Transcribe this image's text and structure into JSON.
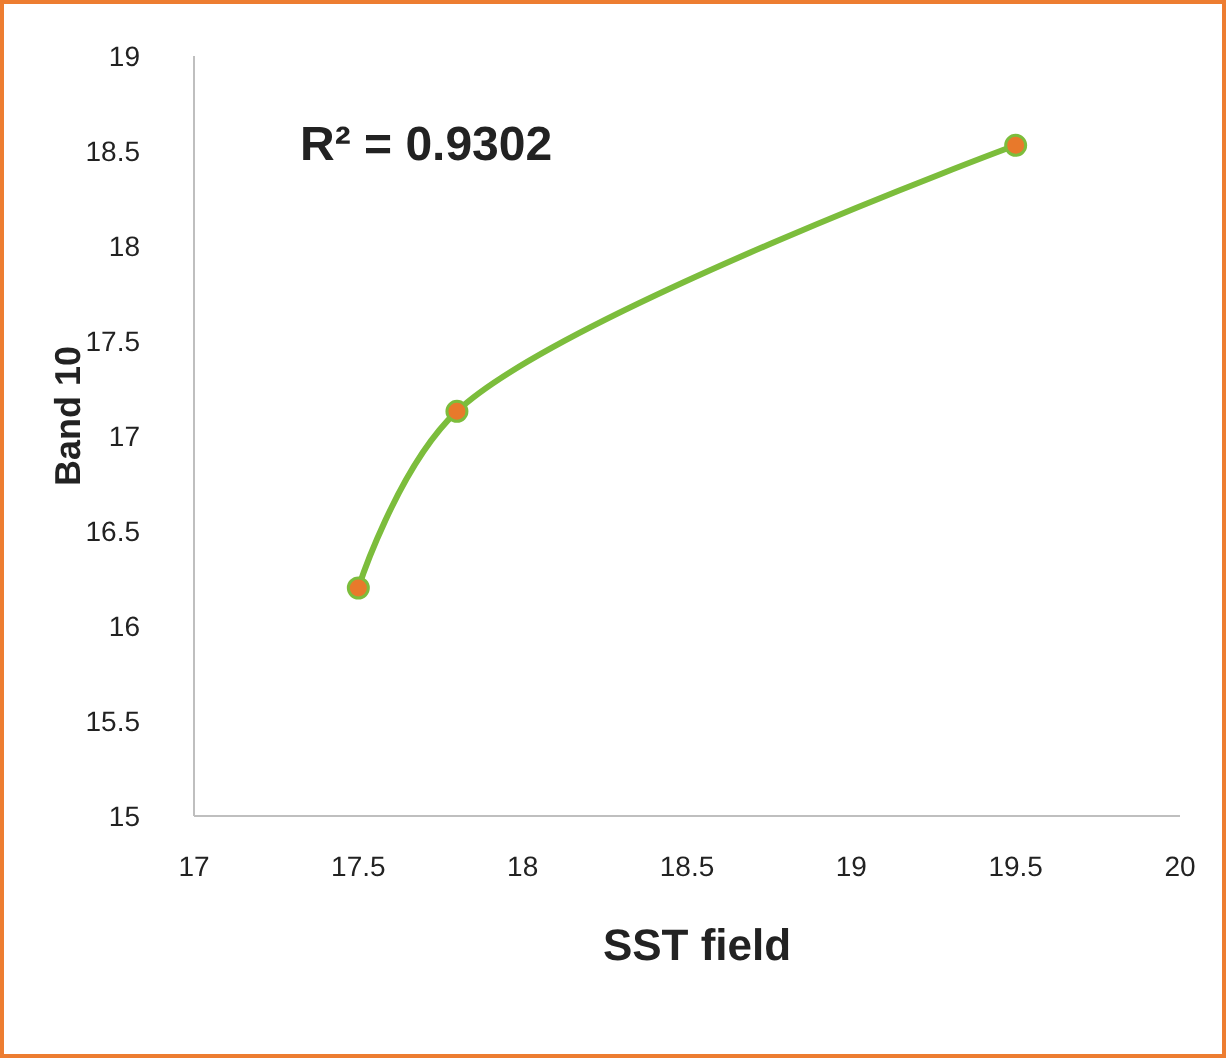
{
  "chart_data": {
    "type": "line",
    "xlabel": "SST field",
    "ylabel": "Band 10",
    "annotations": [
      "R² = 0.9302"
    ],
    "x": [
      17.5,
      17.8,
      19.5
    ],
    "series": [
      {
        "color": "#7cbd3c",
        "values": [
          16.2,
          17.13,
          18.53
        ]
      }
    ],
    "marker": "circle",
    "line_style": "solid",
    "xlim": [
      17,
      20
    ],
    "xticks": [
      17,
      17.5,
      18,
      18.5,
      19,
      19.5,
      20
    ],
    "ylim": [
      15,
      19
    ],
    "yticks": [
      15,
      15.5,
      16,
      16.5,
      17,
      17.5,
      18,
      18.5,
      19
    ]
  }
}
